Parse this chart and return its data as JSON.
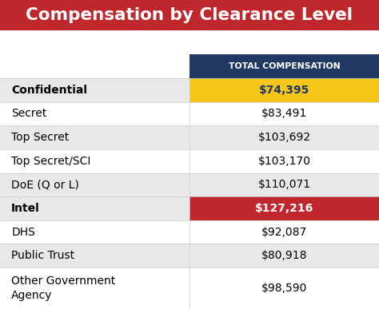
{
  "title": "Compensation by Clearance Level",
  "title_bg": "#C0272D",
  "title_color": "#FFFFFF",
  "header_label": "TOTAL COMPENSATION",
  "header_bg": "#1F3864",
  "header_color": "#FFFFFF",
  "rows": [
    {
      "label": "Confidential",
      "value": "$74,395",
      "cell_bg": "#F5C518",
      "text_color": "#1F3864",
      "bold": true,
      "row_bg": "#E8E8E8"
    },
    {
      "label": "Secret",
      "value": "$83,491",
      "cell_bg": null,
      "text_color": "#000000",
      "bold": false,
      "row_bg": "#FFFFFF"
    },
    {
      "label": "Top Secret",
      "value": "$103,692",
      "cell_bg": null,
      "text_color": "#000000",
      "bold": false,
      "row_bg": "#E8E8E8"
    },
    {
      "label": "Top Secret/SCI",
      "value": "$103,170",
      "cell_bg": null,
      "text_color": "#000000",
      "bold": false,
      "row_bg": "#FFFFFF"
    },
    {
      "label": "DoE (Q or L)",
      "value": "$110,071",
      "cell_bg": null,
      "text_color": "#000000",
      "bold": false,
      "row_bg": "#E8E8E8"
    },
    {
      "label": "Intel",
      "value": "$127,216",
      "cell_bg": "#C0272D",
      "text_color": "#FFFFFF",
      "bold": true,
      "row_bg": "#E8E8E8"
    },
    {
      "label": "DHS",
      "value": "$92,087",
      "cell_bg": null,
      "text_color": "#000000",
      "bold": false,
      "row_bg": "#FFFFFF"
    },
    {
      "label": "Public Trust",
      "value": "$80,918",
      "cell_bg": null,
      "text_color": "#000000",
      "bold": false,
      "row_bg": "#E8E8E8"
    },
    {
      "label": "Other Government\nAgency",
      "value": "$98,590",
      "cell_bg": null,
      "text_color": "#000000",
      "bold": false,
      "row_bg": "#FFFFFF"
    }
  ],
  "col_split": 0.5,
  "title_fontsize": 15.5,
  "header_fontsize": 7.8,
  "cell_fontsize": 10,
  "fig_width": 4.74,
  "fig_height": 3.87,
  "dpi": 100
}
